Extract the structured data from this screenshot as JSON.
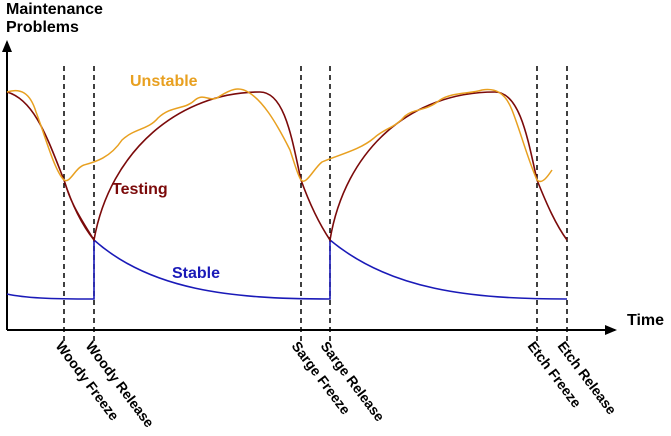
{
  "y_axis_label_line1": "Maintenance",
  "y_axis_label_line2": "Problems",
  "x_axis_label": "Time",
  "curves": {
    "unstable": {
      "label": "Unstable",
      "color": "#e8a020"
    },
    "testing": {
      "label": "Testing",
      "color": "#7b0a0a"
    },
    "stable": {
      "label": "Stable",
      "color": "#1a1ab8"
    }
  },
  "events": [
    {
      "label": "Woody Freeze"
    },
    {
      "label": "Woody Release"
    },
    {
      "label": "Sarge Freeze"
    },
    {
      "label": "Sarge Release"
    },
    {
      "label": "Etch Freeze"
    },
    {
      "label": "Etch Release"
    }
  ]
}
